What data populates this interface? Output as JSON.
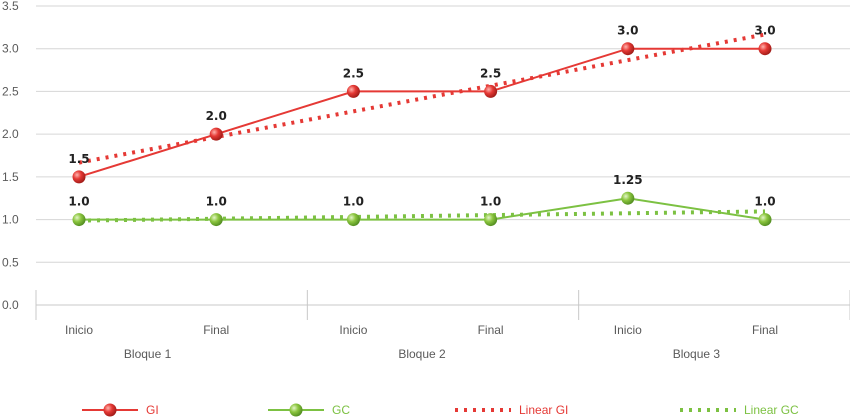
{
  "chart_data": {
    "type": "line",
    "title": "",
    "xlabel": "",
    "ylabel": "",
    "ylim": [
      0.0,
      3.5
    ],
    "yticks": [
      "0.0",
      "0.5",
      "1.0",
      "1.5",
      "2.0",
      "2.5",
      "3.0",
      "3.5"
    ],
    "categories": [
      "Inicio",
      "Final",
      "Inicio",
      "Final",
      "Inicio",
      "Final"
    ],
    "groups": [
      "Bloque 1",
      "Bloque 2",
      "Bloque 3"
    ],
    "grid": true,
    "legend_position": "bottom",
    "series": [
      {
        "name": "GI",
        "values": [
          1.5,
          2.0,
          2.5,
          2.5,
          3.0,
          3.0
        ],
        "labels": [
          "1.5",
          "2.0",
          "2.5",
          "2.5",
          "3.0",
          "3.0"
        ],
        "color": "#e53935"
      },
      {
        "name": "GC",
        "values": [
          1.0,
          1.0,
          1.0,
          1.0,
          1.25,
          1.0
        ],
        "labels": [
          "1.0",
          "1.0",
          "1.0",
          "1.0",
          "1.25",
          "1.0"
        ],
        "color": "#7cc142"
      }
    ],
    "trendlines": [
      {
        "name": "Linear GI",
        "of": "GI",
        "color": "#e53935"
      },
      {
        "name": "Linear GC",
        "of": "GC",
        "color": "#7cc142"
      }
    ]
  }
}
